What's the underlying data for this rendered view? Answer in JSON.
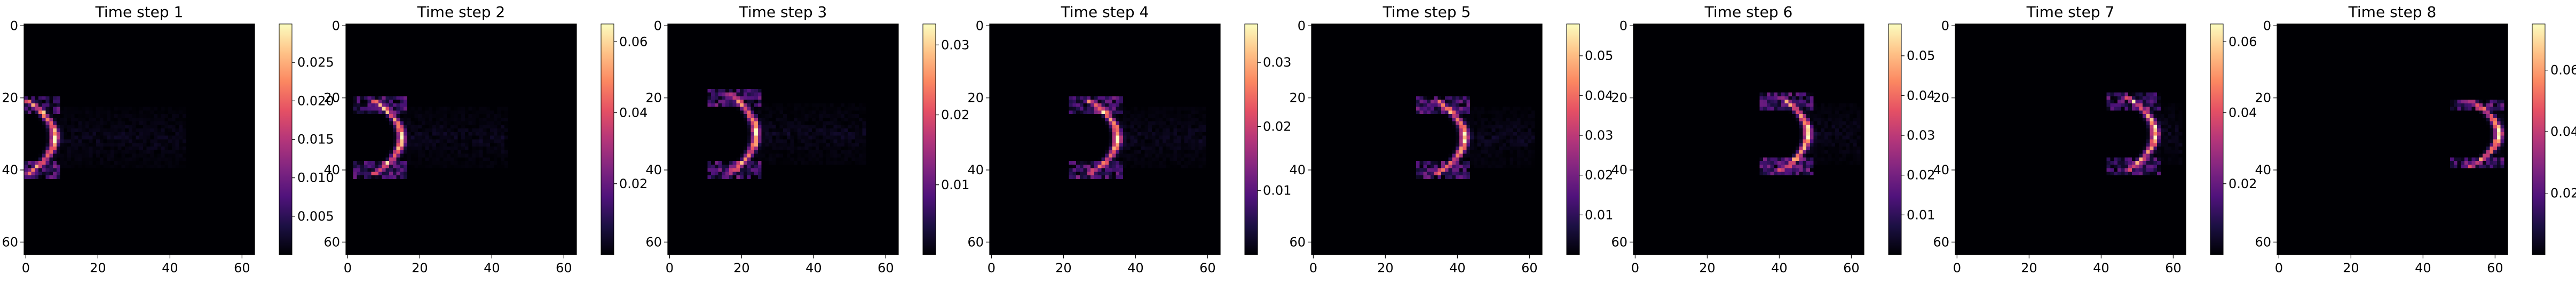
{
  "figure": {
    "background": "#ffffff"
  },
  "colormap": {
    "name": "magma",
    "stops": [
      "#000004",
      "#1c1044",
      "#4f127b",
      "#812581",
      "#b5367a",
      "#e55064",
      "#fb8761",
      "#fec287",
      "#fcfdbf"
    ]
  },
  "chart_data": [
    {
      "type": "heatmap",
      "title": "Time step 1",
      "xlim": [
        0,
        63
      ],
      "ylim": [
        63,
        0
      ],
      "xticks": [
        "0",
        "20",
        "40",
        "60"
      ],
      "yticks": [
        "0",
        "20",
        "40",
        "60"
      ],
      "colorbar": {
        "min": 0,
        "max": 0.03,
        "ticks": [
          "0.005",
          "0.010",
          "0.015",
          "0.020",
          "0.025"
        ]
      },
      "field": {
        "center_x": 8,
        "center_y": 31,
        "radius_y": 9,
        "peak": 0.03,
        "tail_end_x": 45
      }
    },
    {
      "type": "heatmap",
      "title": "Time step 2",
      "xlim": [
        0,
        63
      ],
      "ylim": [
        63,
        0
      ],
      "xticks": [
        "0",
        "20",
        "40",
        "60"
      ],
      "yticks": [
        "0",
        "20",
        "40",
        "60"
      ],
      "colorbar": {
        "min": 0,
        "max": 0.065,
        "ticks": [
          "0.02",
          "0.04",
          "0.06"
        ]
      },
      "field": {
        "center_x": 15,
        "center_y": 31,
        "radius_y": 9,
        "peak": 0.062,
        "tail_end_x": 45
      }
    },
    {
      "type": "heatmap",
      "title": "Time step 3",
      "xlim": [
        0,
        63
      ],
      "ylim": [
        63,
        0
      ],
      "xticks": [
        "0",
        "20",
        "40",
        "60"
      ],
      "yticks": [
        "0",
        "20",
        "40",
        "60"
      ],
      "colorbar": {
        "min": 0,
        "max": 0.033,
        "ticks": [
          "0.01",
          "0.02",
          "0.03"
        ]
      },
      "field": {
        "center_x": 24,
        "center_y": 30,
        "radius_y": 10,
        "peak": 0.033,
        "tail_end_x": 55
      }
    },
    {
      "type": "heatmap",
      "title": "Time step 4",
      "xlim": [
        0,
        63
      ],
      "ylim": [
        63,
        0
      ],
      "xticks": [
        "0",
        "20",
        "40",
        "60"
      ],
      "yticks": [
        "0",
        "20",
        "40",
        "60"
      ],
      "colorbar": {
        "min": 0,
        "max": 0.036,
        "ticks": [
          "0.01",
          "0.02",
          "0.03"
        ]
      },
      "field": {
        "center_x": 35,
        "center_y": 31,
        "radius_y": 9,
        "peak": 0.036,
        "tail_end_x": 60
      }
    },
    {
      "type": "heatmap",
      "title": "Time step 5",
      "xlim": [
        0,
        63
      ],
      "ylim": [
        63,
        0
      ],
      "xticks": [
        "0",
        "20",
        "40",
        "60"
      ],
      "yticks": [
        "0",
        "20",
        "40",
        "60"
      ],
      "colorbar": {
        "min": 0,
        "max": 0.058,
        "ticks": [
          "0.01",
          "0.02",
          "0.03",
          "0.04",
          "0.05"
        ]
      },
      "field": {
        "center_x": 42,
        "center_y": 31,
        "radius_y": 9,
        "peak": 0.058,
        "tail_end_x": 62
      }
    },
    {
      "type": "heatmap",
      "title": "Time step 6",
      "xlim": [
        0,
        63
      ],
      "ylim": [
        63,
        0
      ],
      "xticks": [
        "0",
        "20",
        "40",
        "60"
      ],
      "yticks": [
        "0",
        "20",
        "40",
        "60"
      ],
      "colorbar": {
        "min": 0,
        "max": 0.058,
        "ticks": [
          "0.01",
          "0.02",
          "0.03",
          "0.04",
          "0.05"
        ]
      },
      "field": {
        "center_x": 48,
        "center_y": 30,
        "radius_y": 9,
        "peak": 0.058,
        "tail_end_x": 63
      }
    },
    {
      "type": "heatmap",
      "title": "Time step 7",
      "xlim": [
        0,
        63
      ],
      "ylim": [
        63,
        0
      ],
      "xticks": [
        "0",
        "20",
        "40",
        "60"
      ],
      "yticks": [
        "0",
        "20",
        "40",
        "60"
      ],
      "colorbar": {
        "min": 0,
        "max": 0.065,
        "ticks": [
          "0.02",
          "0.04",
          "0.06"
        ]
      },
      "field": {
        "center_x": 55,
        "center_y": 30,
        "radius_y": 9,
        "peak": 0.065,
        "tail_end_x": 63
      }
    },
    {
      "type": "heatmap",
      "title": "Time step 8",
      "xlim": [
        0,
        63
      ],
      "ylim": [
        63,
        0
      ],
      "xticks": [
        "0",
        "20",
        "40",
        "60"
      ],
      "yticks": [
        "0",
        "20",
        "40",
        "60"
      ],
      "colorbar": {
        "min": 0,
        "max": 0.075,
        "ticks": [
          "0.02",
          "0.04",
          "0.06"
        ]
      },
      "field": {
        "center_x": 61,
        "center_y": 30,
        "radius_y": 8,
        "peak": 0.075,
        "tail_end_x": 63
      }
    }
  ]
}
